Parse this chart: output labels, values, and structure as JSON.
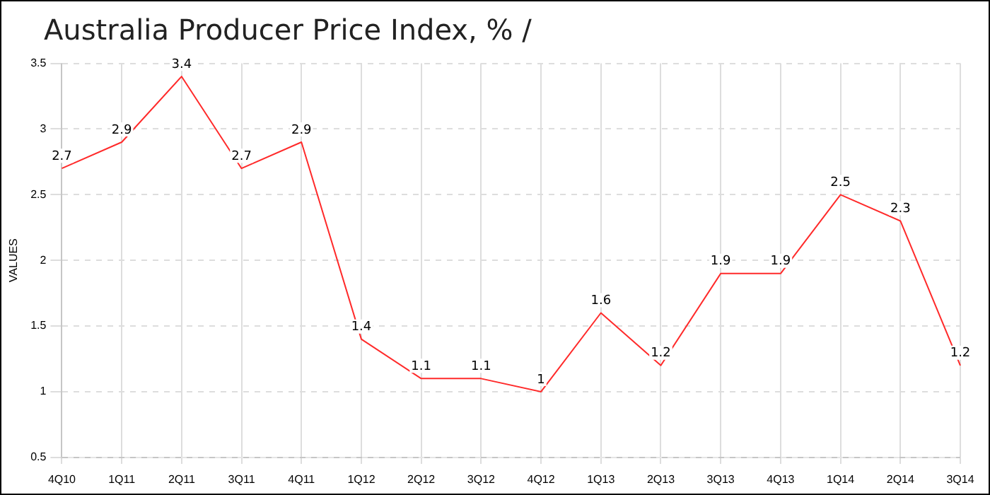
{
  "chart_data": {
    "type": "line",
    "title": "Australia Producer Price Index, %  /",
    "ylabel": "VALUES",
    "categories": [
      "4Q10",
      "1Q11",
      "2Q11",
      "3Q11",
      "4Q11",
      "1Q12",
      "2Q12",
      "3Q12",
      "4Q12",
      "1Q13",
      "2Q13",
      "3Q13",
      "4Q13",
      "1Q14",
      "2Q14",
      "3Q14"
    ],
    "series": [
      {
        "color": "#ff2a2a",
        "values": [
          2.7,
          2.9,
          3.4,
          2.7,
          2.9,
          1.4,
          1.1,
          1.1,
          1,
          1.6,
          1.2,
          1.9,
          1.9,
          2.5,
          2.3,
          1.2
        ]
      }
    ],
    "ylim": [
      0.5,
      3.5
    ],
    "yticks": [
      0.5,
      1,
      1.5,
      2,
      2.5,
      3,
      3.5
    ],
    "grid": true,
    "legend": false,
    "data_labels": true,
    "marker": "none",
    "line_style": "solid"
  }
}
